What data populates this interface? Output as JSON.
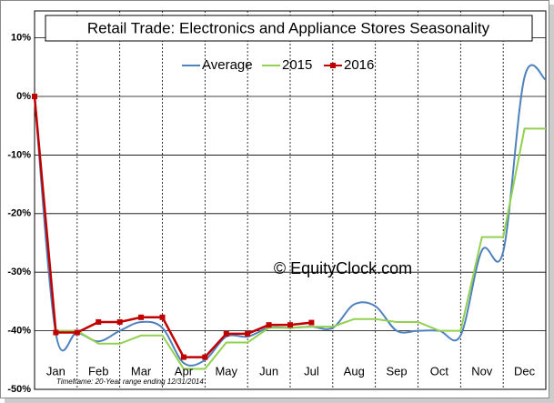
{
  "chart_data": {
    "type": "line",
    "title": "Retail Trade: Electronics and Appliance Stores Seasonality",
    "watermark": "© EquityClock.com",
    "footnote": "Timeframe: 20-Year range ending 12/31/2014",
    "categories": [
      null,
      "Jan",
      null,
      "Feb",
      null,
      "Mar",
      null,
      "Apr",
      null,
      "May",
      null,
      "Jun",
      null,
      "Jul",
      null,
      "Aug",
      null,
      "Sep",
      null,
      "Oct",
      null,
      "Nov",
      null,
      "Dec",
      null
    ],
    "series": [
      {
        "name": "Average",
        "color": "#4f81bd",
        "smooth": true,
        "values": [
          0,
          -40.5,
          -40.3,
          -41.8,
          -40,
          -38.5,
          -39.5,
          -45.5,
          -45,
          -41,
          -41,
          -39.5,
          -39.5,
          -39.3,
          -39.5,
          -35.5,
          -35.8,
          -40,
          -40,
          -40,
          -40.8,
          -26.3,
          -26.5,
          3.3,
          2.8
        ]
      },
      {
        "name": "2015",
        "color": "#92d050",
        "smooth": false,
        "values": [
          0,
          -40,
          -40,
          -42.2,
          -42.2,
          -40.8,
          -40.8,
          -46.5,
          -46.5,
          -42,
          -42,
          -39.5,
          -39.5,
          -39.3,
          -39.3,
          -38,
          -38,
          -38.5,
          -38.5,
          -40,
          -40,
          -24,
          -24,
          -5.5,
          -5.5
        ]
      },
      {
        "name": "2016",
        "color": "#c00000",
        "smooth": false,
        "markers": true,
        "values": [
          0,
          -40.3,
          -40.3,
          -38.5,
          -38.5,
          -37.7,
          -37.7,
          -44.5,
          -44.5,
          -40.5,
          -40.5,
          -39,
          -39,
          -38.6,
          null,
          null,
          null,
          null,
          null,
          null,
          null,
          null,
          null,
          null,
          null
        ]
      }
    ],
    "ylim": [
      -50,
      14.6
    ],
    "yticks": [
      {
        "value": -50,
        "label": "-50%"
      },
      {
        "value": -40,
        "label": "-40%"
      },
      {
        "value": -30,
        "label": "-30%"
      },
      {
        "value": -20,
        "label": "-20%"
      },
      {
        "value": -10,
        "label": "-10%"
      },
      {
        "value": 0,
        "label": "0%"
      },
      {
        "value": 10,
        "label": "10%"
      }
    ],
    "grid": true,
    "legend": "top"
  }
}
